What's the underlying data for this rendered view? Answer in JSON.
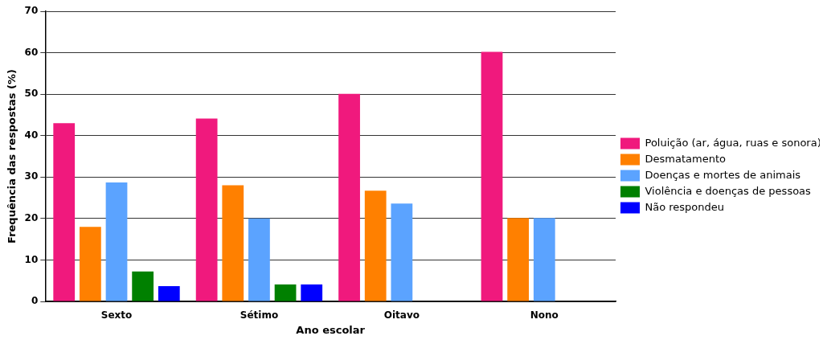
{
  "chart_data": {
    "type": "bar",
    "xlabel": "Ano escolar",
    "ylabel": "Frequência das respostas (%)",
    "categories": [
      "Sexto",
      "Sétimo",
      "Oitavo",
      "Nono"
    ],
    "series": [
      {
        "name": "Poluição (ar, água, ruas e sonora)",
        "color": "#f0197d",
        "values": [
          43,
          44.1,
          50.1,
          60.2
        ]
      },
      {
        "name": "Desmatamento",
        "color": "#ff8000",
        "values": [
          18,
          28,
          26.7,
          20.1
        ]
      },
      {
        "name": "Doenças e mortes de animais",
        "color": "#5ba3ff",
        "values": [
          28.7,
          20,
          23.6,
          20.1
        ]
      },
      {
        "name": "Violência e doenças de pessoas",
        "color": "#008000",
        "values": [
          7.2,
          4.1,
          null,
          null
        ]
      },
      {
        "name": "Não respondeu",
        "color": "#0000ff",
        "values": [
          3.7,
          4.1,
          null,
          null
        ]
      }
    ],
    "ylim": [
      0,
      70
    ],
    "yticks": [
      0,
      10,
      20,
      30,
      40,
      50,
      60,
      70
    ],
    "grid": "y",
    "legend": "right"
  }
}
